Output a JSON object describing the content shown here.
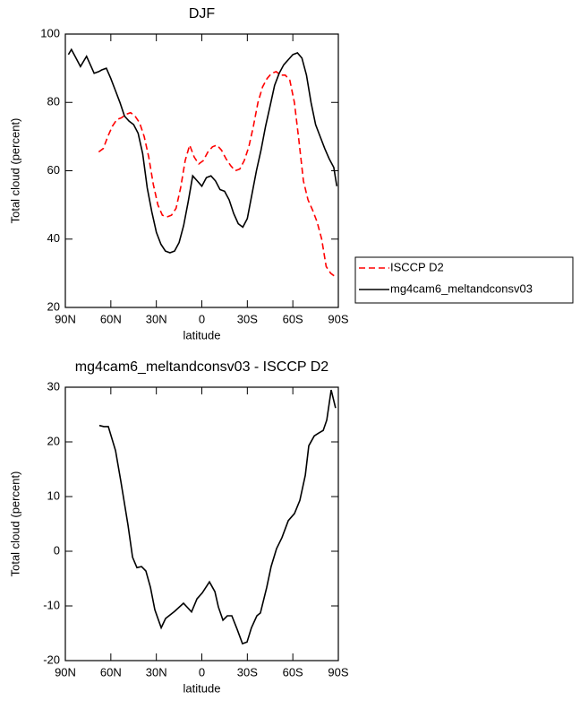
{
  "chart_data": [
    {
      "type": "line",
      "title": "DJF",
      "x_label": "latitude",
      "y_label": "Total cloud (percent)",
      "xlim": [
        90,
        -90
      ],
      "xticks": [
        {
          "value": 90,
          "label": "90N"
        },
        {
          "value": 60,
          "label": "60N"
        },
        {
          "value": 30,
          "label": "30N"
        },
        0,
        {
          "value": -30,
          "label": "30S"
        },
        {
          "value": -60,
          "label": "60S"
        },
        {
          "value": -90,
          "label": "90S"
        }
      ],
      "ylim": [
        20,
        100
      ],
      "yticks": [
        20,
        40,
        60,
        80,
        100
      ],
      "legend": "right",
      "series": [
        {
          "name": "ISCCP D2",
          "color": "#ff0000",
          "dash": true,
          "x": [
            68,
            65,
            62,
            59,
            56,
            53,
            50,
            47,
            44,
            41,
            38,
            35,
            32,
            29,
            26,
            23,
            20,
            17,
            14,
            11,
            8,
            5,
            2,
            -1,
            -4,
            -7,
            -10,
            -13,
            -16,
            -19,
            -22,
            -25,
            -28,
            -31,
            -34,
            -37,
            -40,
            -43,
            -46,
            -49,
            -52,
            -55,
            -58,
            -61,
            -64,
            -67,
            -70,
            -73,
            -76,
            -79,
            -82,
            -85,
            -88
          ],
          "values": [
            65.5,
            66.5,
            70,
            73,
            75,
            75.5,
            76.5,
            77,
            76,
            74,
            70,
            64,
            56,
            50,
            47,
            46.5,
            47,
            49,
            55,
            63,
            67.5,
            64,
            62,
            63,
            65.5,
            67,
            67.5,
            66,
            63.5,
            61.5,
            60,
            60.5,
            63,
            67,
            73,
            80,
            84.5,
            87,
            88.5,
            89,
            88,
            88,
            86.5,
            80,
            69,
            57,
            51.5,
            48.5,
            45,
            40,
            32,
            30,
            29
          ]
        },
        {
          "name": "mg4cam6_meltandconsv03",
          "color": "#000000",
          "dash": false,
          "x": [
            88,
            86,
            83,
            80,
            78,
            76,
            73,
            71,
            68,
            66,
            63,
            60,
            57,
            54,
            51,
            48,
            45,
            42,
            39,
            36,
            33,
            30,
            27,
            24,
            21,
            18,
            15,
            12,
            9,
            6,
            3,
            0,
            -3,
            -6,
            -9,
            -12,
            -15,
            -18,
            -21,
            -24,
            -27,
            -30,
            -33,
            -36,
            -39,
            -42,
            -45,
            -48,
            -51,
            -54,
            -57,
            -60,
            -63,
            -66,
            -69,
            -72,
            -75,
            -78,
            -81,
            -84,
            -87,
            -89
          ],
          "values": [
            94,
            95.5,
            93,
            90.5,
            92,
            93.5,
            90.5,
            88.5,
            89,
            89.5,
            90,
            87,
            83.5,
            80,
            76,
            74.5,
            73.5,
            71,
            65,
            55,
            48,
            42,
            38.5,
            36.5,
            36,
            36.5,
            39,
            44,
            51,
            58.5,
            57,
            55.5,
            58,
            58.5,
            57,
            54.5,
            54,
            51.5,
            47.5,
            44.5,
            43.5,
            46,
            53,
            60,
            66,
            73,
            79,
            85,
            88.5,
            91,
            92.5,
            94,
            94.5,
            93,
            88,
            80,
            73.5,
            70,
            66.5,
            63.5,
            61,
            55.5
          ]
        }
      ]
    },
    {
      "type": "line",
      "title": "mg4cam6_meltandconsv03 - ISCCP D2",
      "x_label": "latitude",
      "y_label": "Total cloud (percent)",
      "xlim": [
        90,
        -90
      ],
      "xticks": [
        {
          "value": 90,
          "label": "90N"
        },
        {
          "value": 60,
          "label": "60N"
        },
        {
          "value": 30,
          "label": "30N"
        },
        0,
        {
          "value": -30,
          "label": "30S"
        },
        {
          "value": -60,
          "label": "60S"
        },
        {
          "value": -90,
          "label": "90S"
        }
      ],
      "ylim": [
        -20,
        30
      ],
      "yticks": [
        -20,
        -10,
        0,
        10,
        20,
        30
      ],
      "color": "#000000",
      "x": [
        67.6,
        64.6,
        61.7,
        56.9,
        53.4,
        48.7,
        45.7,
        42.8,
        39.8,
        36.9,
        33.9,
        31.0,
        26.8,
        23.9,
        18.0,
        12.1,
        6.8,
        3.2,
        -0.3,
        -5.0,
        -8.6,
        -10.9,
        -13.9,
        -16.8,
        -19.8,
        -23.3,
        -26.8,
        -29.8,
        -32.7,
        -36.3,
        -38.6,
        -42.8,
        -45.7,
        -49.3,
        -52.8,
        -57.0,
        -61.1,
        -64.6,
        -68.2,
        -70.5,
        -74.1,
        -77.0,
        -80.0,
        -82.4,
        -85.3,
        -88.2
      ],
      "values": [
        23,
        22.8,
        22.8,
        18.4,
        12.8,
        4.8,
        -1.1,
        -3,
        -2.8,
        -3.6,
        -6.6,
        -10.7,
        -14,
        -12.3,
        -11,
        -9.5,
        -11.1,
        -8.7,
        -7.6,
        -5.6,
        -7.4,
        -10.2,
        -12.6,
        -11.8,
        -11.8,
        -14.3,
        -16.9,
        -16.6,
        -14,
        -11.8,
        -11.3,
        -6.6,
        -2.8,
        0.5,
        2.5,
        5.6,
        6.9,
        9.3,
        13.9,
        19.3,
        21.1,
        21.6,
        22.1,
        24,
        29.5,
        26.2
      ]
    }
  ]
}
